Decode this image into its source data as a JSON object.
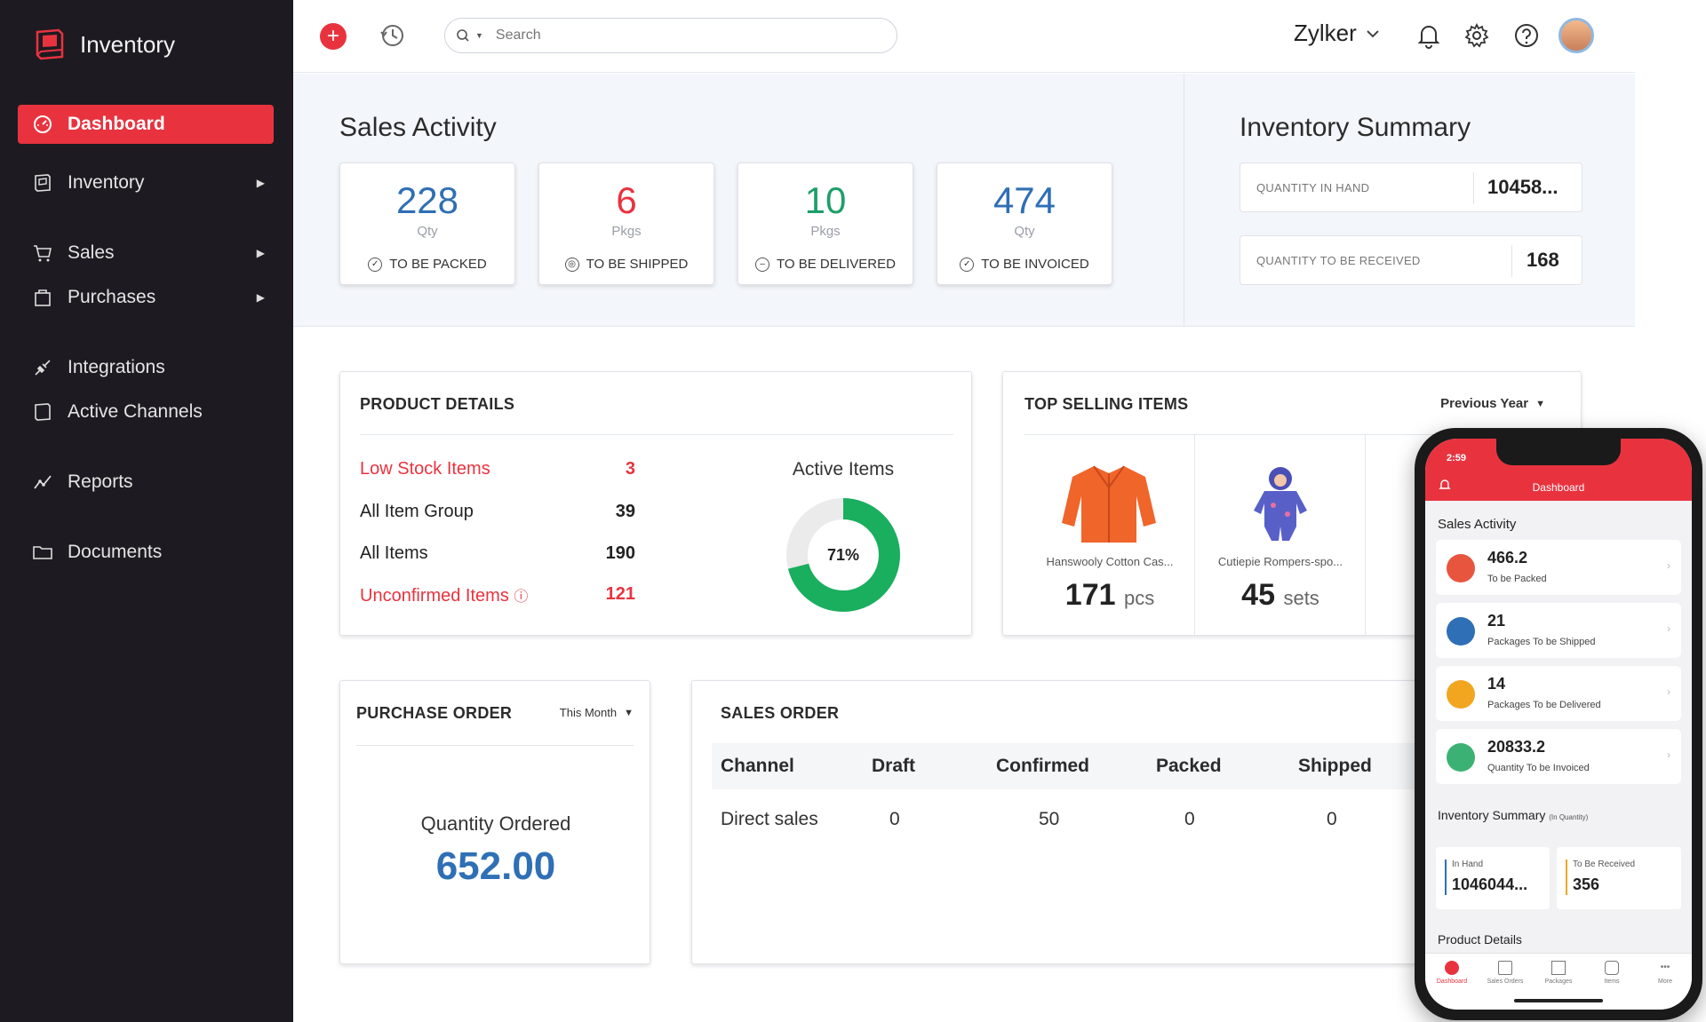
{
  "app": {
    "name": "Inventory"
  },
  "sidebar": {
    "items": [
      {
        "label": "Dashboard"
      },
      {
        "label": "Inventory"
      },
      {
        "label": "Sales"
      },
      {
        "label": "Purchases"
      },
      {
        "label": "Integrations"
      },
      {
        "label": "Active Channels"
      },
      {
        "label": "Reports"
      },
      {
        "label": "Documents"
      }
    ]
  },
  "topbar": {
    "search_placeholder": "Search",
    "org_name": "Zylker"
  },
  "sales_activity": {
    "title": "Sales Activity",
    "cards": [
      {
        "value": "228",
        "unit": "Qty",
        "label": "TO BE PACKED",
        "color": "#2e6fb5"
      },
      {
        "value": "6",
        "unit": "Pkgs",
        "label": "TO BE SHIPPED",
        "color": "#e8333f"
      },
      {
        "value": "10",
        "unit": "Pkgs",
        "label": "TO BE DELIVERED",
        "color": "#1e9e6a"
      },
      {
        "value": "474",
        "unit": "Qty",
        "label": "TO BE INVOICED",
        "color": "#2e6fb5"
      }
    ]
  },
  "inventory_summary": {
    "title": "Inventory Summary",
    "quantity_in_hand_label": "QUANTITY IN HAND",
    "quantity_in_hand_value": "10458...",
    "quantity_to_receive_label": "QUANTITY TO BE RECEIVED",
    "quantity_to_receive_value": "168"
  },
  "product_details": {
    "title": "PRODUCT DETAILS",
    "rows": [
      {
        "label": "Low Stock Items",
        "value": "3"
      },
      {
        "label": "All Item Group",
        "value": "39"
      },
      {
        "label": "All Items",
        "value": "190"
      },
      {
        "label": "Unconfirmed Items",
        "value": "121"
      }
    ],
    "active_items_label": "Active Items",
    "active_percent_text": "71%",
    "active_fraction": 0.71
  },
  "top_selling": {
    "title": "TOP SELLING ITEMS",
    "period": "Previous Year",
    "items": [
      {
        "name": "Hanswooly Cotton Cas...",
        "qty": "171",
        "unit": "pcs"
      },
      {
        "name": "Cutiepie Rompers-spo...",
        "qty": "45",
        "unit": "sets"
      }
    ]
  },
  "purchase_order": {
    "title": "PURCHASE ORDER",
    "period": "This Month",
    "qty_label": "Quantity Ordered",
    "qty_value": "652.00"
  },
  "sales_order": {
    "title": "SALES ORDER",
    "columns": [
      "Channel",
      "Draft",
      "Confirmed",
      "Packed",
      "Shipped"
    ],
    "rows": [
      [
        "Direct sales",
        "0",
        "50",
        "0",
        "0"
      ]
    ]
  },
  "mobile": {
    "time": "2:59",
    "title": "Dashboard",
    "sales_activity_title": "Sales Activity",
    "cards": [
      {
        "value": "466.2",
        "label": "To be Packed",
        "color": "#e8553f"
      },
      {
        "value": "21",
        "label": "Packages To be Shipped",
        "color": "#2e6fb5"
      },
      {
        "value": "14",
        "label": "Packages To be Delivered",
        "color": "#f2a51f"
      },
      {
        "value": "20833.2",
        "label": "Quantity To be Invoiced",
        "color": "#3bb273"
      }
    ],
    "inventory_summary_title": "Inventory Summary",
    "inventory_summary_note": "(In Quantity)",
    "in_hand_label": "In Hand",
    "in_hand_value": "1046044...",
    "to_receive_label": "To Be Received",
    "to_receive_value": "356",
    "product_details_title": "Product Details",
    "tabs": [
      "Dashboard",
      "Sales Orders",
      "Packages",
      "Items",
      "More"
    ]
  },
  "colors": {
    "accent": "#e8333f",
    "sidebar_bg": "#1d1b21",
    "donut_green": "#1aae5f"
  }
}
